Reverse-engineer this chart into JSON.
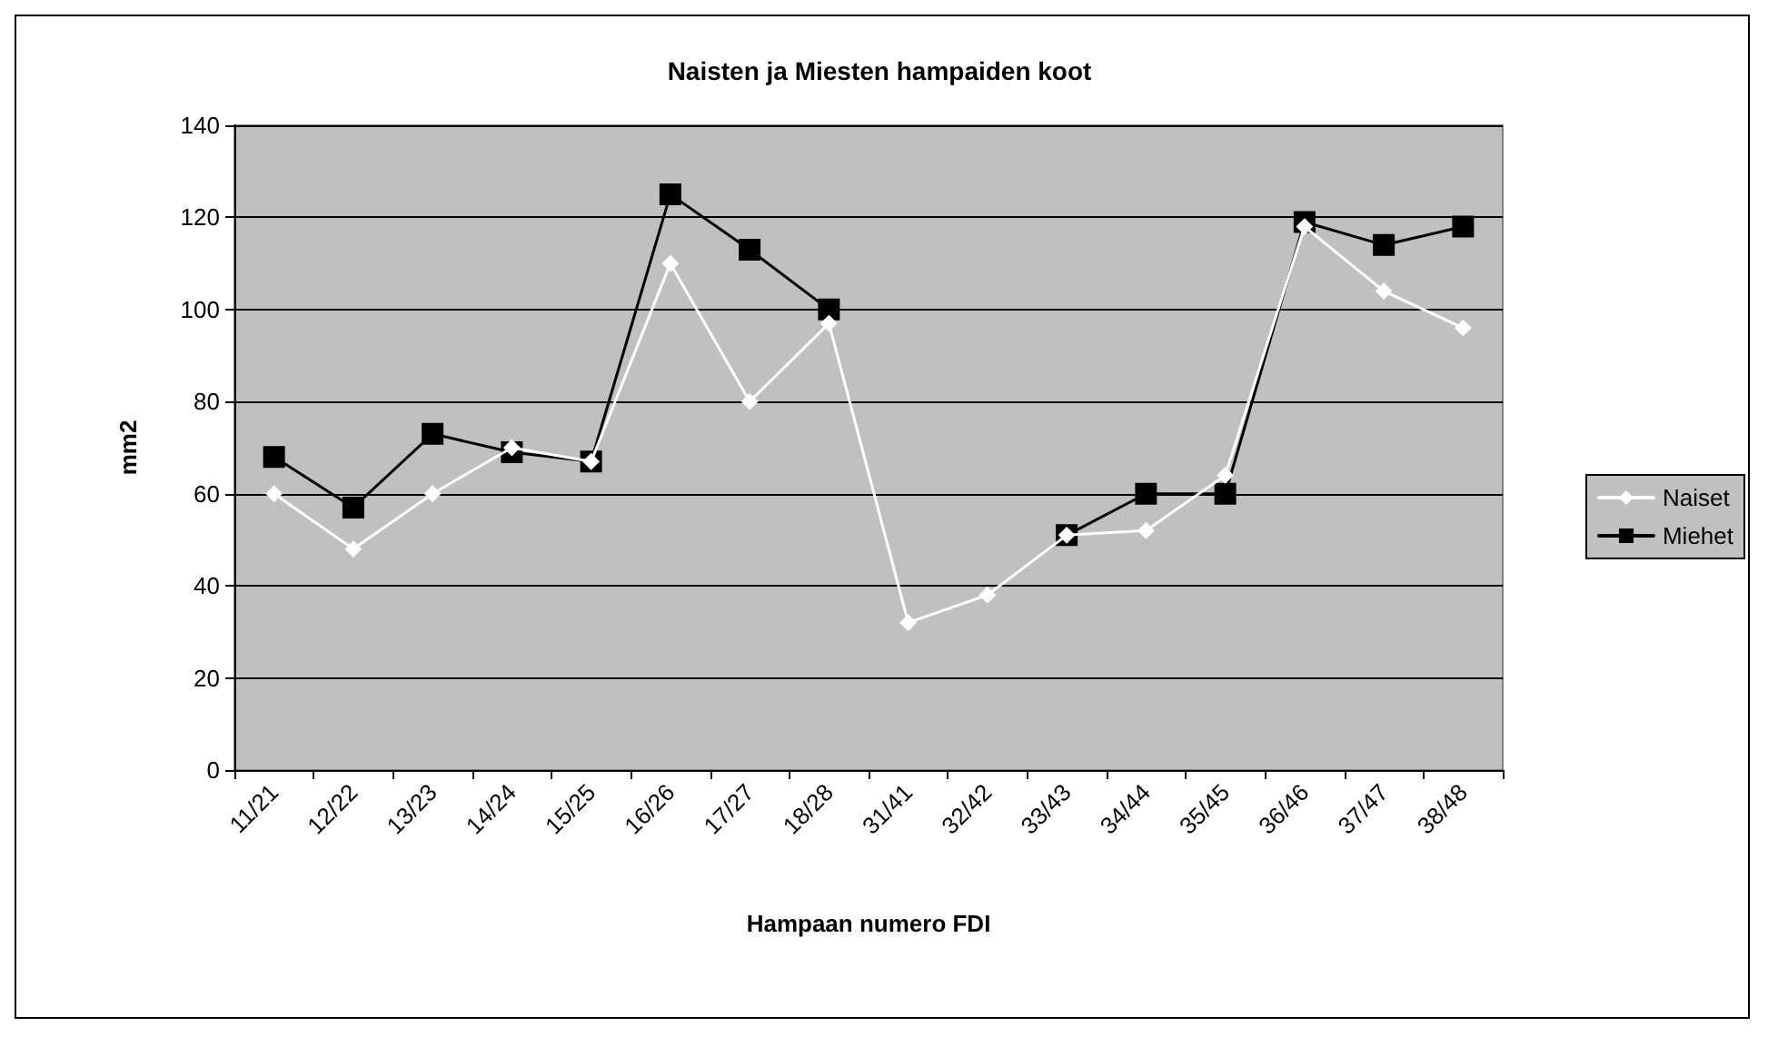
{
  "chart_data": {
    "type": "line",
    "title": "Naisten ja Miesten hampaiden koot",
    "xlabel": "Hampaan numero FDI",
    "ylabel": "mm2",
    "categories": [
      "11/21",
      "12/22",
      "13/23",
      "14/24",
      "15/25",
      "16/26",
      "17/27",
      "18/28",
      "31/41",
      "32/42",
      "33/43",
      "34/44",
      "35/45",
      "36/46",
      "37/47",
      "38/48"
    ],
    "series": [
      {
        "name": "Naiset",
        "color": "#ffffff",
        "marker": "diamond",
        "values": [
          60,
          48,
          60,
          70,
          67,
          110,
          80,
          97,
          32,
          38,
          51,
          52,
          64,
          118,
          104,
          96
        ]
      },
      {
        "name": "Miehet",
        "color": "#000000",
        "marker": "square",
        "values": [
          68,
          57,
          73,
          69,
          67,
          125,
          113,
          100,
          null,
          null,
          51,
          60,
          60,
          119,
          114,
          118
        ]
      }
    ],
    "ylim": [
      0,
      140
    ],
    "yticks": [
      0,
      20,
      40,
      60,
      80,
      100,
      120,
      140
    ],
    "grid": "y",
    "legend": "right"
  }
}
